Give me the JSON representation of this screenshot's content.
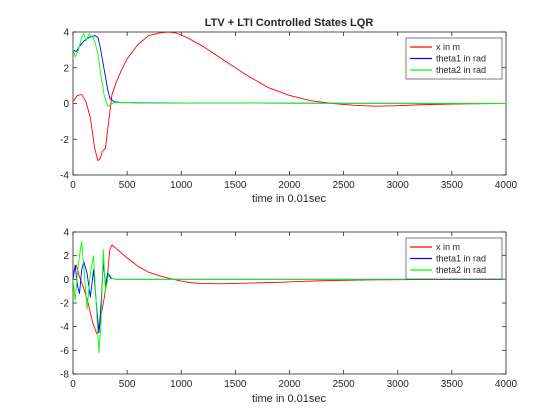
{
  "chart_data": [
    {
      "type": "line",
      "title": "LTV + LTI Controlled States LQR",
      "xlabel": "time in 0.01sec",
      "ylabel": "",
      "xlim": [
        0,
        4000
      ],
      "ylim": [
        -4,
        4
      ],
      "xticks": [
        0,
        500,
        1000,
        1500,
        2000,
        2500,
        3000,
        3500,
        4000
      ],
      "yticks": [
        -4,
        -2,
        0,
        2,
        4
      ],
      "grid": false,
      "legend": "top-right",
      "series": [
        {
          "name": "x in m",
          "color": "#ff0000",
          "x": [
            0,
            40,
            80,
            120,
            160,
            200,
            230,
            250,
            270,
            300,
            330,
            360,
            400,
            450,
            500,
            600,
            700,
            800,
            880,
            950,
            1050,
            1200,
            1400,
            1600,
            1800,
            2000,
            2200,
            2400,
            2600,
            2800,
            3000,
            3200,
            3500,
            3800,
            4000
          ],
          "y": [
            0.1,
            0.45,
            0.5,
            0.1,
            -0.8,
            -2.5,
            -3.2,
            -3.1,
            -2.7,
            -2.5,
            -1.0,
            0.5,
            1.2,
            1.9,
            2.5,
            3.3,
            3.8,
            3.95,
            4.0,
            3.95,
            3.7,
            3.2,
            2.4,
            1.6,
            0.9,
            0.45,
            0.15,
            0.0,
            -0.1,
            -0.15,
            -0.12,
            -0.07,
            -0.03,
            -0.01,
            0.0
          ]
        },
        {
          "name": "theta1 in rad",
          "color": "#0000ff",
          "x": [
            0,
            30,
            60,
            100,
            150,
            200,
            230,
            250,
            270,
            300,
            320,
            340,
            380,
            450,
            600,
            1000,
            2000,
            3000,
            4000
          ],
          "y": [
            3.0,
            2.9,
            3.2,
            3.5,
            3.7,
            3.8,
            3.7,
            3.2,
            2.5,
            1.5,
            0.8,
            0.3,
            0.1,
            0.05,
            0.04,
            0.03,
            0.02,
            0.01,
            0.0
          ]
        },
        {
          "name": "theta2 in rad",
          "color": "#00ff00",
          "x": [
            0,
            20,
            50,
            80,
            100,
            120,
            150,
            180,
            200,
            230,
            260,
            290,
            320,
            340,
            380,
            450,
            600,
            1000,
            2000,
            3000,
            4000
          ],
          "y": [
            3.1,
            2.6,
            3.0,
            3.7,
            3.9,
            3.5,
            3.9,
            3.7,
            3.5,
            2.8,
            1.5,
            0.4,
            -0.15,
            -0.1,
            0.05,
            0.06,
            0.05,
            0.03,
            0.02,
            0.01,
            0.0
          ]
        }
      ]
    },
    {
      "type": "line",
      "title": "",
      "xlabel": "time in 0.01sec",
      "ylabel": "",
      "xlim": [
        0,
        4000
      ],
      "ylim": [
        -8,
        4
      ],
      "xticks": [
        0,
        500,
        1000,
        1500,
        2000,
        2500,
        3000,
        3500,
        4000
      ],
      "yticks": [
        -8,
        -6,
        -4,
        -2,
        0,
        2,
        4
      ],
      "grid": false,
      "legend": "top-right",
      "series": [
        {
          "name": "x in m",
          "color": "#ff0000",
          "x": [
            0,
            30,
            60,
            100,
            140,
            180,
            220,
            240,
            260,
            290,
            320,
            340,
            360,
            400,
            500,
            600,
            700,
            800,
            900,
            1000,
            1100,
            1200,
            1350,
            1500,
            1700,
            1900,
            2100,
            2300,
            2500,
            2800,
            3200,
            3600,
            4000
          ],
          "y": [
            0.5,
            1.2,
            0.2,
            -0.8,
            -2.0,
            -3.6,
            -4.6,
            -4.3,
            -3.0,
            -1.5,
            0.5,
            2.5,
            2.9,
            2.6,
            1.8,
            1.1,
            0.6,
            0.3,
            0.05,
            -0.15,
            -0.3,
            -0.35,
            -0.38,
            -0.35,
            -0.3,
            -0.25,
            -0.18,
            -0.12,
            -0.08,
            -0.04,
            -0.02,
            -0.01,
            0.0
          ]
        },
        {
          "name": "theta1 in rad",
          "color": "#0000ff",
          "x": [
            0,
            20,
            40,
            60,
            80,
            100,
            130,
            160,
            190,
            220,
            240,
            260,
            280,
            300,
            320,
            350,
            400,
            500,
            1000,
            2000,
            4000
          ],
          "y": [
            0.0,
            1.2,
            -0.5,
            -1.2,
            0.8,
            1.5,
            0.5,
            -1.5,
            0.8,
            -2.5,
            -4.5,
            -2.0,
            1.5,
            -0.5,
            0.5,
            0.1,
            0.0,
            0.0,
            0.0,
            0.0,
            0.0
          ]
        },
        {
          "name": "theta2 in rad",
          "color": "#00ff00",
          "x": [
            0,
            20,
            40,
            60,
            80,
            100,
            130,
            160,
            190,
            220,
            240,
            260,
            280,
            300,
            330,
            360,
            400,
            500,
            1000,
            2000,
            4000
          ],
          "y": [
            0.0,
            -1.8,
            0.5,
            2.0,
            3.2,
            1.0,
            -2.5,
            0.5,
            2.0,
            -3.0,
            -6.2,
            -3.5,
            2.5,
            -1.0,
            0.5,
            0.1,
            0.0,
            0.0,
            0.0,
            0.0,
            0.0
          ]
        }
      ]
    }
  ]
}
